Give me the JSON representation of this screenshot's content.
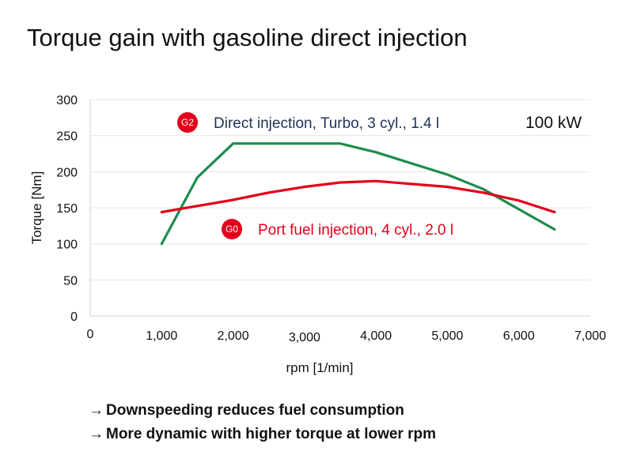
{
  "title": "Torque gain with gasoline direct injection",
  "colors": {
    "direct_injection": "#1e8c4e",
    "port_fuel_injection": "#e2001a",
    "badge": "#e2001a",
    "gridline": "#e6e6e6",
    "axis": "#d0d0d0"
  },
  "chart_data": {
    "type": "line",
    "xlabel": "rpm [1/min]",
    "ylabel": "Torque [Nm]",
    "xlim": [
      0,
      7000
    ],
    "ylim": [
      0,
      300
    ],
    "x_ticks": [
      "0",
      "1,000",
      "2,000",
      "3,000",
      "4,000",
      "5,000",
      "6,000",
      "7,000"
    ],
    "y_ticks": [
      "0",
      "50",
      "100",
      "150",
      "200",
      "250",
      "300"
    ],
    "grid": "horizontal",
    "power_annotation": "100 kW",
    "series": [
      {
        "name": "Direct injection, Turbo, 3 cyl., 1.4 l",
        "badge": "G2",
        "color": "#1e8c4e",
        "points": [
          [
            1000,
            100
          ],
          [
            1500,
            192
          ],
          [
            2000,
            239
          ],
          [
            3500,
            239
          ],
          [
            4000,
            227
          ],
          [
            5000,
            196
          ],
          [
            5500,
            176
          ],
          [
            6500,
            120
          ]
        ]
      },
      {
        "name": "Port fuel injection, 4 cyl., 2.0 l",
        "badge": "G0",
        "color": "#e2001a",
        "points": [
          [
            1000,
            144
          ],
          [
            2000,
            161
          ],
          [
            2500,
            171
          ],
          [
            3000,
            179
          ],
          [
            3500,
            185
          ],
          [
            4000,
            187
          ],
          [
            5000,
            179
          ],
          [
            5500,
            171
          ],
          [
            6000,
            160
          ],
          [
            6500,
            144
          ]
        ]
      }
    ]
  },
  "bullets": [
    {
      "arrow": "→",
      "text": "Downspeeding reduces fuel consumption"
    },
    {
      "arrow": "→",
      "text": "More dynamic with higher torque at lower rpm"
    }
  ]
}
